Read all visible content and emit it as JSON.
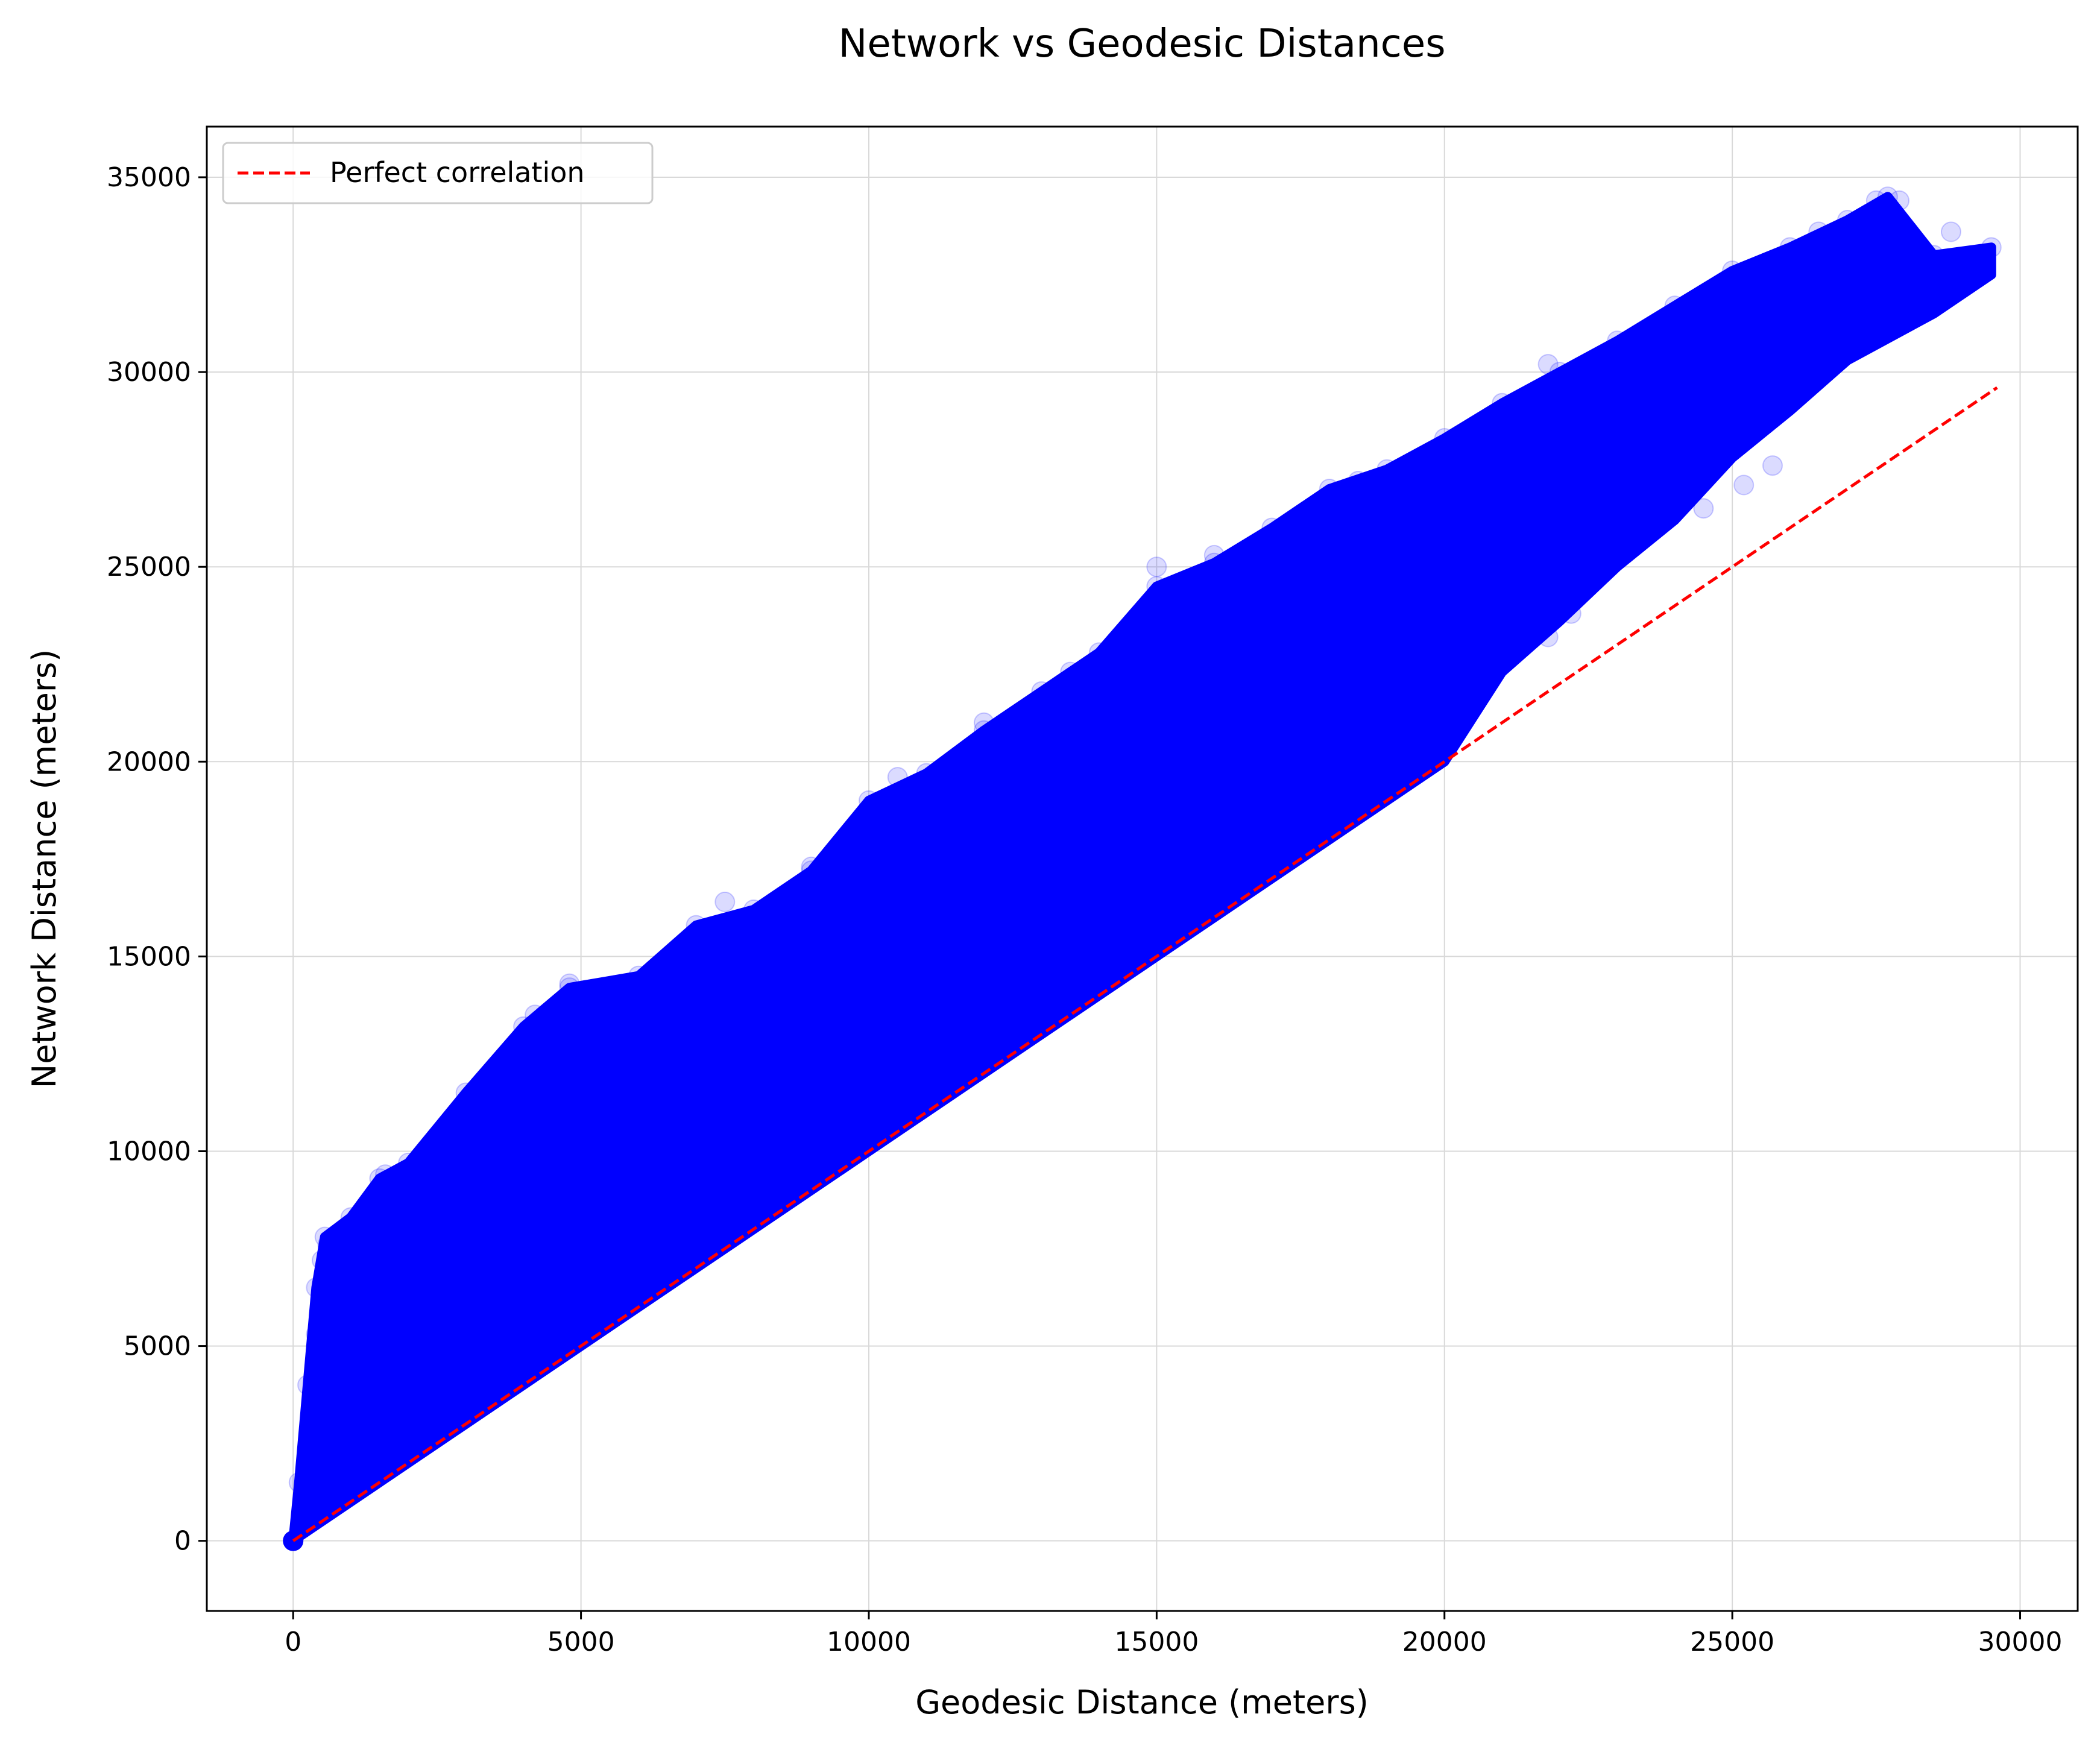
{
  "chart_data": {
    "type": "scatter",
    "title": "Network vs Geodesic Distances",
    "xlabel": "Geodesic Distance (meters)",
    "ylabel": "Network Distance (meters)",
    "xlim": [
      -1500,
      31000
    ],
    "ylim": [
      -1800,
      36300
    ],
    "xticks": [
      0,
      5000,
      10000,
      15000,
      20000,
      25000,
      30000
    ],
    "yticks": [
      0,
      5000,
      10000,
      15000,
      20000,
      25000,
      30000,
      35000
    ],
    "grid": true,
    "legend_position": "upper-left",
    "colors": {
      "points": "#0000ff",
      "reference_line": "#ff0000",
      "grid": "#d9d9d9",
      "axes": "#000000"
    },
    "series": [
      {
        "kind": "scatter-envelope",
        "upper_boundary": [
          [
            0,
            0
          ],
          [
            100,
            1500
          ],
          [
            250,
            4000
          ],
          [
            400,
            6500
          ],
          [
            550,
            7800
          ],
          [
            1000,
            8300
          ],
          [
            1500,
            9300
          ],
          [
            2000,
            9700
          ],
          [
            3000,
            11500
          ],
          [
            4000,
            13200
          ],
          [
            4800,
            14200
          ],
          [
            6000,
            14500
          ],
          [
            7000,
            15800
          ],
          [
            8000,
            16200
          ],
          [
            9000,
            17200
          ],
          [
            10000,
            19000
          ],
          [
            11000,
            19700
          ],
          [
            12000,
            20800
          ],
          [
            13000,
            21800
          ],
          [
            14000,
            22800
          ],
          [
            15000,
            24500
          ],
          [
            16000,
            25100
          ],
          [
            17000,
            26000
          ],
          [
            18000,
            27000
          ],
          [
            19000,
            27500
          ],
          [
            20000,
            28300
          ],
          [
            21000,
            29200
          ],
          [
            22000,
            30000
          ],
          [
            23000,
            30800
          ],
          [
            24000,
            31700
          ],
          [
            25000,
            32600
          ],
          [
            26000,
            33200
          ],
          [
            27000,
            33900
          ],
          [
            27700,
            34500
          ],
          [
            28500,
            33000
          ],
          [
            29500,
            33200
          ]
        ],
        "lower_boundary": [
          [
            29500,
            32500
          ],
          [
            28500,
            31500
          ],
          [
            27000,
            30300
          ],
          [
            26000,
            29000
          ],
          [
            25000,
            27800
          ],
          [
            24000,
            26200
          ],
          [
            23000,
            25000
          ],
          [
            22000,
            23600
          ],
          [
            21000,
            22300
          ],
          [
            20000,
            20000
          ],
          [
            15000,
            15000
          ],
          [
            10000,
            10000
          ],
          [
            5000,
            5000
          ],
          [
            0,
            0
          ]
        ],
        "outliers": [
          [
            27500,
            34400
          ],
          [
            27900,
            34400
          ],
          [
            28800,
            33600
          ],
          [
            26500,
            33600
          ],
          [
            21800,
            30200
          ],
          [
            19000,
            27300
          ],
          [
            18500,
            27200
          ],
          [
            16000,
            25300
          ],
          [
            15000,
            25000
          ],
          [
            13500,
            22300
          ],
          [
            12000,
            21000
          ],
          [
            10500,
            19600
          ],
          [
            9000,
            17300
          ],
          [
            7500,
            16400
          ],
          [
            4800,
            14300
          ],
          [
            4200,
            13500
          ],
          [
            600,
            7600
          ],
          [
            500,
            7200
          ],
          [
            450,
            5800
          ],
          [
            400,
            5300
          ],
          [
            1600,
            9400
          ],
          [
            25200,
            27100
          ],
          [
            25700,
            27600
          ],
          [
            21800,
            23200
          ],
          [
            22200,
            23800
          ],
          [
            23000,
            25200
          ],
          [
            24500,
            26500
          ]
        ]
      },
      {
        "name": "Perfect correlation",
        "kind": "line",
        "style": "dashed",
        "x": [
          0,
          29600
        ],
        "y": [
          0,
          29600
        ]
      }
    ]
  }
}
